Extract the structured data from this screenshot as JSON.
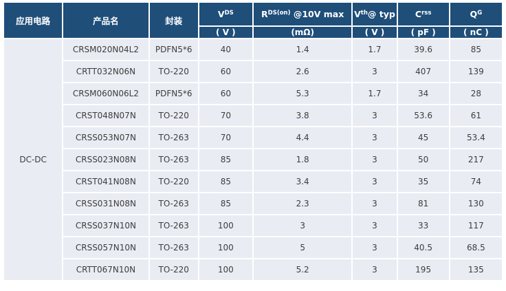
{
  "colors": {
    "header_bg": "#1f4e79",
    "header_text": "#ffffff",
    "row_bg": "#e9ecf3",
    "body_text": "#3d3d3d",
    "page_bg": "#ffffff"
  },
  "table": {
    "header": {
      "circuit": "应用电路",
      "product": "产品名",
      "package": "封装",
      "vds": {
        "base": "V",
        "sup": "DS",
        "rest": "",
        "unit": "( V )"
      },
      "rds": {
        "base": "R",
        "sup": "DS(on)",
        "rest": " @10V max",
        "unit": "(mΩ)"
      },
      "vth": {
        "base": "V",
        "sup": "th",
        "rest": "@ typ",
        "unit": "( V )"
      },
      "crss": {
        "base": "C",
        "sup": "rss",
        "rest": "",
        "unit": "( pF )"
      },
      "qg": {
        "base": "Q",
        "sup": "G",
        "rest": "",
        "unit": "( nC )"
      }
    },
    "circuit_value": "DC-DC",
    "rows": [
      {
        "product": "CRSM020N04L2",
        "package": "PDFN5*6",
        "vds": "40",
        "rds": "1.4",
        "vth": "1.7",
        "crss": "39.6",
        "qg": "85"
      },
      {
        "product": "CRTT032N06N",
        "package": "TO-220",
        "vds": "60",
        "rds": "2.6",
        "vth": "3",
        "crss": "407",
        "qg": "139"
      },
      {
        "product": "CRSM060N06L2",
        "package": "PDFN5*6",
        "vds": "60",
        "rds": "5.3",
        "vth": "1.7",
        "crss": "34",
        "qg": "28"
      },
      {
        "product": "CRST048N07N",
        "package": "TO-220",
        "vds": "70",
        "rds": "3.8",
        "vth": "3",
        "crss": "53.6",
        "qg": "61"
      },
      {
        "product": "CRSS053N07N",
        "package": "TO-263",
        "vds": "70",
        "rds": "4.4",
        "vth": "3",
        "crss": "45",
        "qg": "53.4"
      },
      {
        "product": "CRSS023N08N",
        "package": "TO-263",
        "vds": "85",
        "rds": "1.8",
        "vth": "3",
        "crss": "50",
        "qg": "217"
      },
      {
        "product": "CRST041N08N",
        "package": "TO-220",
        "vds": "85",
        "rds": "3.4",
        "vth": "3",
        "crss": "35",
        "qg": "74"
      },
      {
        "product": "CRSS031N08N",
        "package": "TO-263",
        "vds": "85",
        "rds": "2.3",
        "vth": "3",
        "crss": "81",
        "qg": "130"
      },
      {
        "product": "CRSS037N10N",
        "package": "TO-263",
        "vds": "100",
        "rds": "3",
        "vth": "3",
        "crss": "33",
        "qg": "117"
      },
      {
        "product": "CRSS057N10N",
        "package": "TO-263",
        "vds": "100",
        "rds": "5",
        "vth": "3",
        "crss": "40.5",
        "qg": "68.5"
      },
      {
        "product": "CRTT067N10N",
        "package": "TO-220",
        "vds": "100",
        "rds": "5.2",
        "vth": "3",
        "crss": "195",
        "qg": "135"
      }
    ]
  }
}
